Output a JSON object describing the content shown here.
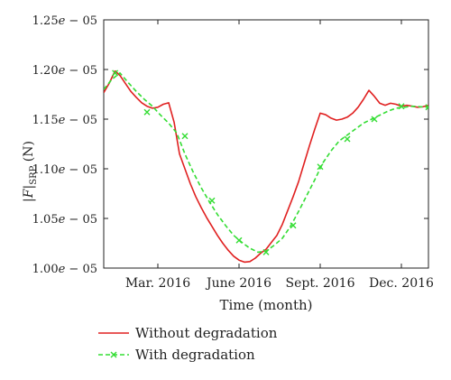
{
  "chart_data": {
    "type": "line",
    "title": "",
    "xlabel": "Time (month)",
    "ylabel": "|F|SRP (N)",
    "ylabel_parts": {
      "prefix": "|",
      "symbol": "F",
      "suffix": "|",
      "subscript": "SRP",
      "unit": " (N)"
    },
    "xlim": [
      0,
      12
    ],
    "ylim": [
      1e-05,
      1.25e-05
    ],
    "x_ticks": [
      {
        "x": 2.0,
        "label": "Mar. 2016"
      },
      {
        "x": 5.0,
        "label": "June 2016"
      },
      {
        "x": 8.0,
        "label": "Sept. 2016"
      },
      {
        "x": 11.0,
        "label": "Dec. 2016"
      }
    ],
    "y_ticks": [
      {
        "y": 1e-05,
        "label_mantissa": "1.00",
        "label_e": "e",
        "label_exp": " − 05"
      },
      {
        "y": 1.05e-05,
        "label_mantissa": "1.05",
        "label_e": "e",
        "label_exp": " − 05"
      },
      {
        "y": 1.1e-05,
        "label_mantissa": "1.10",
        "label_e": "e",
        "label_exp": " − 05"
      },
      {
        "y": 1.15e-05,
        "label_mantissa": "1.15",
        "label_e": "e",
        "label_exp": " − 05"
      },
      {
        "y": 1.2e-05,
        "label_mantissa": "1.20",
        "label_e": "e",
        "label_exp": " − 05"
      },
      {
        "y": 1.25e-05,
        "label_mantissa": "1.25",
        "label_e": "e",
        "label_exp": " − 05"
      }
    ],
    "grid": false,
    "legend_position": "bottom-left",
    "series": [
      {
        "name": "Without degradation",
        "color": "#e02020",
        "style": "solid",
        "marker": "none",
        "x": [
          0.0,
          0.2,
          0.42,
          0.6,
          0.8,
          1.0,
          1.2,
          1.4,
          1.6,
          1.8,
          2.0,
          2.2,
          2.4,
          2.6,
          2.8,
          3.0,
          3.2,
          3.4,
          3.6,
          3.8,
          4.0,
          4.2,
          4.4,
          4.6,
          4.8,
          5.0,
          5.2,
          5.4,
          5.6,
          5.8,
          6.0,
          6.2,
          6.4,
          6.6,
          6.8,
          7.0,
          7.2,
          7.4,
          7.6,
          7.8,
          8.0,
          8.2,
          8.4,
          8.6,
          8.8,
          9.0,
          9.2,
          9.4,
          9.6,
          9.8,
          10.0,
          10.2,
          10.4,
          10.6,
          10.8,
          11.0,
          11.2,
          11.4,
          11.6,
          11.8,
          12.0
        ],
        "y": [
          1.1767e-05,
          1.186e-05,
          1.1985e-05,
          1.194e-05,
          1.186e-05,
          1.178e-05,
          1.172e-05,
          1.1665e-05,
          1.163e-05,
          1.161e-05,
          1.162e-05,
          1.165e-05,
          1.1665e-05,
          1.147e-05,
          1.115e-05,
          1.1e-05,
          1.085e-05,
          1.072e-05,
          1.061e-05,
          1.051e-05,
          1.042e-05,
          1.033e-05,
          1.025e-05,
          1.018e-05,
          1.012e-05,
          1.008e-05,
          1.006e-05,
          1.0065e-05,
          1.01e-05,
          1.015e-05,
          1.019e-05,
          1.026e-05,
          1.033e-05,
          1.044e-05,
          1.058e-05,
          1.072e-05,
          1.087e-05,
          1.105e-05,
          1.123e-05,
          1.14e-05,
          1.156e-05,
          1.1545e-05,
          1.151e-05,
          1.149e-05,
          1.15e-05,
          1.152e-05,
          1.156e-05,
          1.162e-05,
          1.17e-05,
          1.179e-05,
          1.173e-05,
          1.166e-05,
          1.164e-05,
          1.166e-05,
          1.165e-05,
          1.163e-05,
          1.164e-05,
          1.163e-05,
          1.162e-05,
          1.1625e-05,
          1.164e-05
        ]
      },
      {
        "name": "With degradation",
        "color": "#33dd33",
        "style": "dashed",
        "marker": "x",
        "x": [
          0.0,
          0.3,
          0.6,
          0.9,
          1.2,
          1.5,
          1.8,
          2.1,
          2.4,
          2.7,
          3.0,
          3.3,
          3.6,
          3.9,
          4.2,
          4.5,
          4.8,
          5.1,
          5.4,
          5.7,
          6.0,
          6.3,
          6.6,
          6.9,
          7.2,
          7.5,
          7.8,
          8.1,
          8.4,
          8.7,
          9.0,
          9.3,
          9.6,
          9.9,
          10.2,
          10.5,
          10.8,
          11.1,
          11.4,
          11.7,
          12.0
        ],
        "y": [
          1.18e-05,
          1.19e-05,
          1.1965e-05,
          1.187e-05,
          1.178e-05,
          1.17e-05,
          1.163e-05,
          1.154e-05,
          1.146e-05,
          1.136e-05,
          1.115e-05,
          1.097e-05,
          1.081e-05,
          1.067e-05,
          1.054e-05,
          1.043e-05,
          1.033e-05,
          1.026e-05,
          1.02e-05,
          1.016e-05,
          1.017e-05,
          1.023e-05,
          1.03e-05,
          1.042e-05,
          1.057e-05,
          1.073e-05,
          1.089e-05,
          1.106e-05,
          1.118e-05,
          1.128e-05,
          1.134e-05,
          1.14e-05,
          1.146e-05,
          1.15e-05,
          1.154e-05,
          1.158e-05,
          1.161e-05,
          1.162e-05,
          1.163e-05,
          1.1625e-05,
          1.162e-05
        ],
        "markers_x": [
          0.42,
          1.6,
          3.0,
          4.0,
          5.0,
          6.0,
          7.0,
          8.0,
          9.0,
          10.0,
          11.0,
          12.0
        ],
        "markers_y": [
          1.1965e-05,
          1.157e-05,
          1.133e-05,
          1.068e-05,
          1.028e-05,
          1.016e-05,
          1.043e-05,
          1.102e-05,
          1.13e-05,
          1.15e-05,
          1.163e-05,
          1.162e-05
        ]
      }
    ]
  }
}
